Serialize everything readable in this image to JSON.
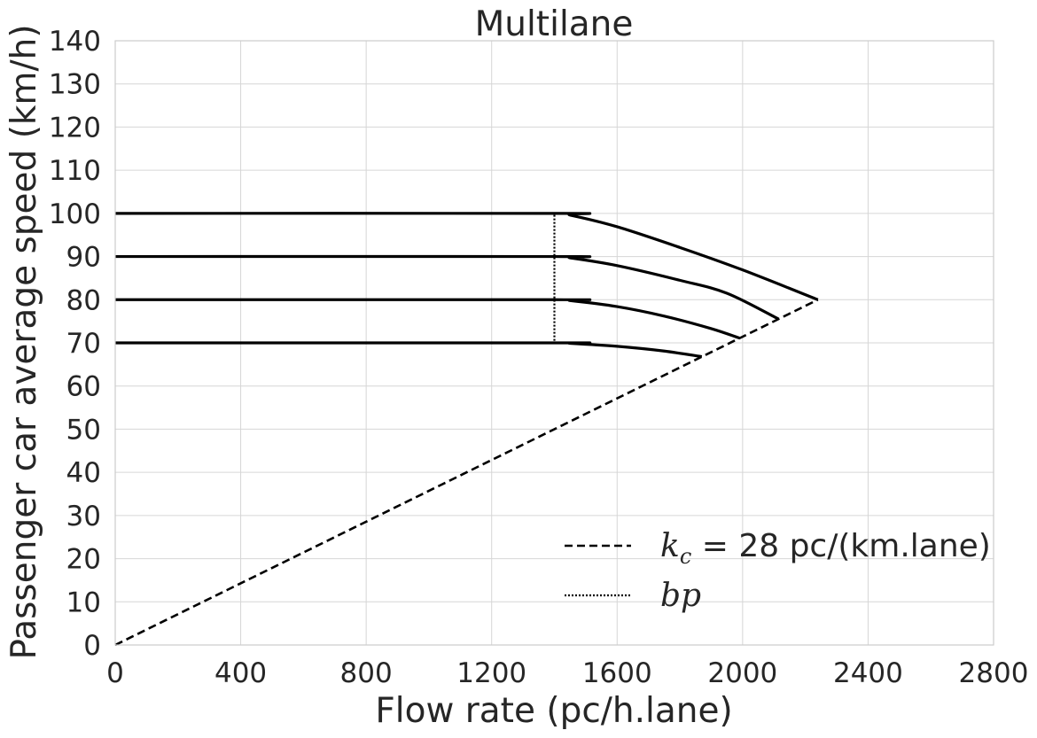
{
  "chart_data": {
    "type": "line",
    "title": "Multilane",
    "xlabel": "Flow rate (pc/h.lane)",
    "ylabel": "Passenger car average speed (km/h)",
    "xlim": [
      0,
      2800
    ],
    "ylim": [
      0,
      140
    ],
    "x_ticks": [
      0,
      400,
      800,
      1200,
      1600,
      2000,
      2400,
      2800
    ],
    "y_ticks": [
      0,
      10,
      20,
      30,
      40,
      50,
      60,
      70,
      80,
      90,
      100,
      110,
      120,
      130,
      140
    ],
    "x_tick_labels": [
      "0",
      "400",
      "800",
      "1200",
      "1600",
      "2000",
      "2400",
      "2800"
    ],
    "y_tick_labels": [
      "0",
      "10",
      "20",
      "30",
      "40",
      "50",
      "60",
      "70",
      "80",
      "90",
      "100",
      "110",
      "120",
      "130",
      "140"
    ],
    "grid": true,
    "legend_position": "bottom-right",
    "speed_curves": [
      {
        "x": [
          0,
          1400,
          1450,
          1600,
          1800,
          2000,
          2240
        ],
        "y": [
          100,
          100,
          99.6,
          96.9,
          92.1,
          86.9,
          80
        ]
      },
      {
        "x": [
          0,
          1400,
          1450,
          1600,
          1800,
          1950,
          2115
        ],
        "y": [
          90,
          90,
          89.7,
          87.9,
          84.5,
          81.5,
          75.5
        ]
      },
      {
        "x": [
          0,
          1400,
          1450,
          1600,
          1750,
          1900,
          1990
        ],
        "y": [
          80,
          80,
          79.8,
          78.4,
          76.2,
          73.3,
          71.1
        ]
      },
      {
        "x": [
          0,
          1400,
          1450,
          1600,
          1750,
          1870
        ],
        "y": [
          70,
          70,
          69.9,
          69.2,
          68.1,
          66.8
        ]
      }
    ],
    "series": [
      {
        "name": "k_c = 28 pc/(km.lane)",
        "legend_math": "k",
        "legend_sub": "c",
        "legend_text": " = 28 pc/(km.lane)",
        "style": "dashed",
        "x": [
          0,
          2240
        ],
        "y": [
          0,
          80
        ]
      },
      {
        "name": "bp",
        "legend_math": "bp",
        "style": "dotted",
        "x": [
          1400,
          1400
        ],
        "y": [
          70.5,
          100
        ]
      }
    ],
    "colors": {
      "line": "#000000",
      "grid": "#d6d6d6",
      "text": "#262626"
    }
  }
}
